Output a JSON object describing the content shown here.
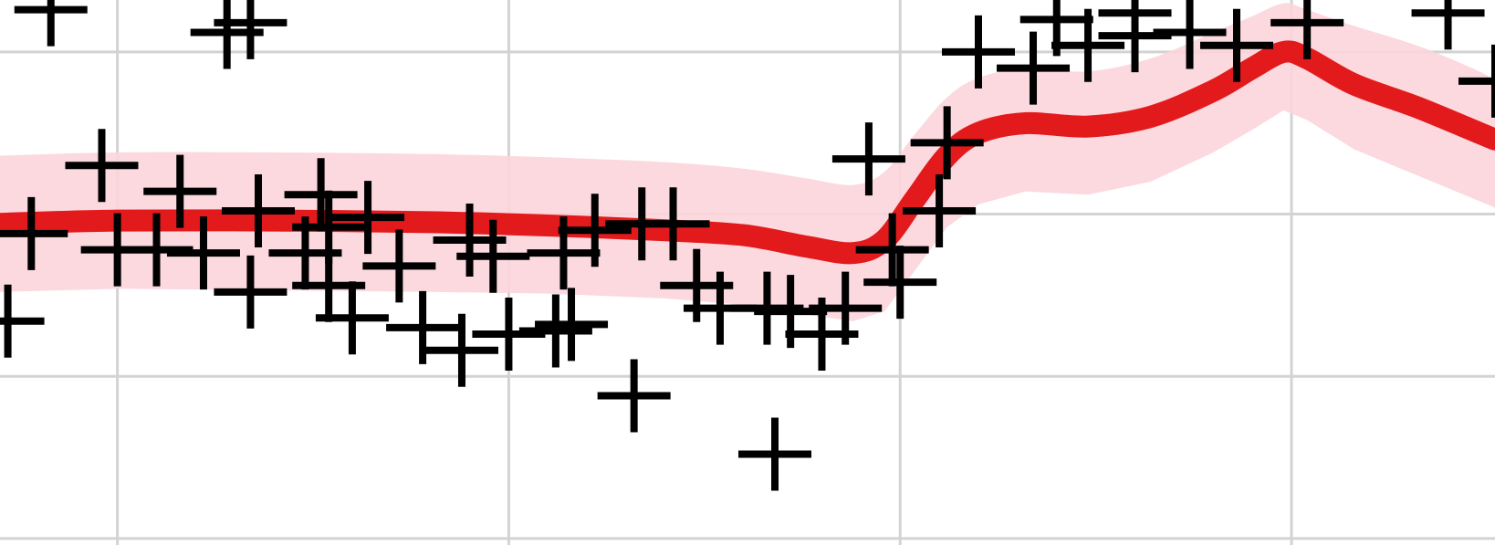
{
  "chart_data": {
    "type": "scatter",
    "title": "",
    "xlabel": "",
    "ylabel": "",
    "grid": true,
    "xlim": [
      -0.15,
      1.76
    ],
    "ylim": [
      -1.52,
      0.16
    ],
    "x_gridlines": [
      0,
      0.5,
      1,
      1.5
    ],
    "y_gridlines": [
      -1.5,
      -1.0,
      -0.5,
      0.0
    ],
    "colors": {
      "points": "#000000",
      "fit_line": "#e31a1c",
      "band": "#fcd4dc",
      "grid": "#d3d3d3",
      "background": "#ffffff"
    },
    "series": [
      {
        "kind": "points",
        "marker": "+",
        "points": [
          [
            -0.085,
            0.13
          ],
          [
            0.14,
            0.06
          ],
          [
            0.17,
            0.09
          ],
          [
            -0.02,
            -0.35
          ],
          [
            0.08,
            -0.43
          ],
          [
            0.18,
            -0.49
          ],
          [
            0.32,
            -0.51
          ],
          [
            0.26,
            -0.44
          ],
          [
            -0.11,
            -0.56
          ],
          [
            0.0,
            -0.61
          ],
          [
            0.05,
            -0.61
          ],
          [
            0.11,
            -0.62
          ],
          [
            0.24,
            -0.62
          ],
          [
            0.17,
            -0.74
          ],
          [
            0.27,
            -0.72
          ],
          [
            0.3,
            -0.82
          ],
          [
            -0.14,
            -0.83
          ],
          [
            0.39,
            -0.85
          ],
          [
            0.5,
            -0.87
          ],
          [
            0.44,
            -0.92
          ],
          [
            0.56,
            -0.86
          ],
          [
            0.66,
            -1.06
          ],
          [
            0.84,
            -1.24
          ],
          [
            0.57,
            -0.62
          ],
          [
            0.71,
            -0.53
          ],
          [
            0.45,
            -0.58
          ],
          [
            0.48,
            -0.63
          ],
          [
            0.67,
            -0.53
          ],
          [
            0.74,
            -0.72
          ],
          [
            0.61,
            -0.55
          ],
          [
            0.58,
            -0.84
          ],
          [
            0.27,
            -0.54
          ],
          [
            0.36,
            -0.66
          ],
          [
            0.77,
            -0.79
          ],
          [
            0.83,
            -0.79
          ],
          [
            0.86,
            -0.8
          ],
          [
            0.9,
            -0.87
          ],
          [
            0.93,
            -0.79
          ],
          [
            0.99,
            -0.61
          ],
          [
            0.96,
            -0.33
          ],
          [
            1.0,
            -0.71
          ],
          [
            1.05,
            -0.49
          ],
          [
            1.06,
            -0.28
          ],
          [
            1.1,
            0.0
          ],
          [
            1.17,
            -0.05
          ],
          [
            1.24,
            0.02
          ],
          [
            1.3,
            0.05
          ],
          [
            1.37,
            0.06
          ],
          [
            1.43,
            0.02
          ],
          [
            1.52,
            0.09
          ],
          [
            1.7,
            0.12
          ],
          [
            1.76,
            -0.09
          ],
          [
            1.2,
            0.1
          ],
          [
            1.3,
            0.12
          ]
        ]
      },
      {
        "kind": "fit_line",
        "points": [
          [
            -0.15,
            -0.53
          ],
          [
            0.0,
            -0.52
          ],
          [
            0.2,
            -0.52
          ],
          [
            0.4,
            -0.525
          ],
          [
            0.55,
            -0.535
          ],
          [
            0.7,
            -0.55
          ],
          [
            0.8,
            -0.565
          ],
          [
            0.88,
            -0.6
          ],
          [
            0.94,
            -0.62
          ],
          [
            0.98,
            -0.58
          ],
          [
            1.02,
            -0.45
          ],
          [
            1.06,
            -0.32
          ],
          [
            1.1,
            -0.25
          ],
          [
            1.16,
            -0.22
          ],
          [
            1.24,
            -0.23
          ],
          [
            1.32,
            -0.2
          ],
          [
            1.4,
            -0.12
          ],
          [
            1.45,
            -0.05
          ],
          [
            1.49,
            0.0
          ],
          [
            1.52,
            -0.02
          ],
          [
            1.58,
            -0.1
          ],
          [
            1.66,
            -0.17
          ],
          [
            1.74,
            -0.25
          ],
          [
            1.76,
            -0.27
          ]
        ]
      },
      {
        "kind": "band",
        "upper": [
          [
            -0.15,
            -0.32
          ],
          [
            0.0,
            -0.31
          ],
          [
            0.2,
            -0.31
          ],
          [
            0.4,
            -0.315
          ],
          [
            0.55,
            -0.325
          ],
          [
            0.7,
            -0.34
          ],
          [
            0.8,
            -0.36
          ],
          [
            0.88,
            -0.39
          ],
          [
            0.94,
            -0.41
          ],
          [
            0.98,
            -0.37
          ],
          [
            1.02,
            -0.25
          ],
          [
            1.06,
            -0.14
          ],
          [
            1.1,
            -0.08
          ],
          [
            1.16,
            -0.05
          ],
          [
            1.24,
            -0.06
          ],
          [
            1.32,
            -0.02
          ],
          [
            1.4,
            0.06
          ],
          [
            1.45,
            0.11
          ],
          [
            1.49,
            0.15
          ],
          [
            1.52,
            0.13
          ],
          [
            1.58,
            0.08
          ],
          [
            1.66,
            0.02
          ],
          [
            1.74,
            -0.06
          ],
          [
            1.76,
            -0.09
          ]
        ],
        "lower": [
          [
            -0.15,
            -0.74
          ],
          [
            0.0,
            -0.73
          ],
          [
            0.2,
            -0.735
          ],
          [
            0.4,
            -0.74
          ],
          [
            0.55,
            -0.745
          ],
          [
            0.7,
            -0.76
          ],
          [
            0.8,
            -0.78
          ],
          [
            0.88,
            -0.81
          ],
          [
            0.94,
            -0.83
          ],
          [
            0.98,
            -0.8
          ],
          [
            1.02,
            -0.67
          ],
          [
            1.06,
            -0.54
          ],
          [
            1.1,
            -0.47
          ],
          [
            1.16,
            -0.43
          ],
          [
            1.24,
            -0.44
          ],
          [
            1.32,
            -0.4
          ],
          [
            1.4,
            -0.31
          ],
          [
            1.45,
            -0.24
          ],
          [
            1.49,
            -0.18
          ],
          [
            1.52,
            -0.21
          ],
          [
            1.58,
            -0.3
          ],
          [
            1.66,
            -0.38
          ],
          [
            1.74,
            -0.46
          ],
          [
            1.76,
            -0.48
          ]
        ]
      }
    ]
  }
}
